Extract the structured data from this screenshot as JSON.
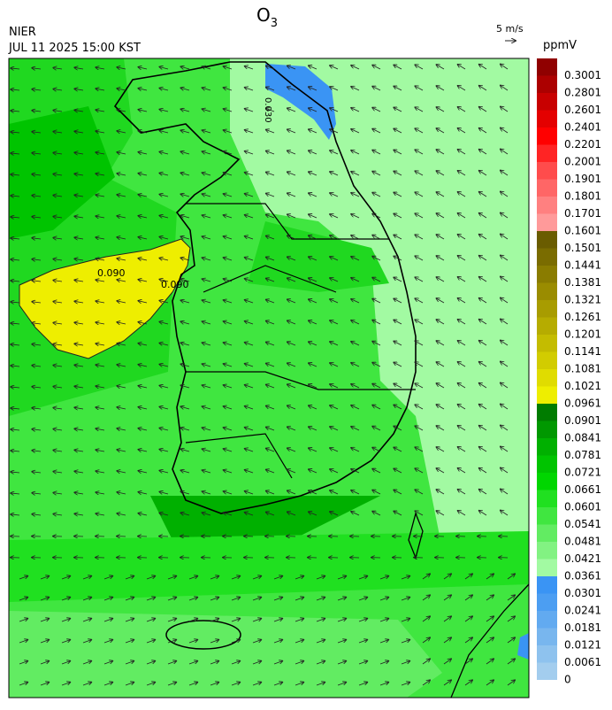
{
  "title": {
    "text": "O",
    "subscript": "3"
  },
  "source": "NIER",
  "datetime": "JUL 11 2025 15:00 KST",
  "wind_scale": "5 m/s",
  "contour_labels": [
    "0.090",
    "0.090",
    "0.030"
  ],
  "colorbar": {
    "unit": "ppmV",
    "labels": [
      0,
      0.0061,
      0.0121,
      0.0181,
      0.0241,
      0.0301,
      0.0361,
      0.0421,
      0.0481,
      0.0541,
      0.0601,
      0.0661,
      0.0721,
      0.0781,
      0.0841,
      0.0901,
      0.0961,
      0.1021,
      0.1081,
      0.1141,
      0.1201,
      0.1261,
      0.1321,
      0.1381,
      0.1441,
      0.1501,
      0.1601,
      0.1701,
      0.1801,
      0.1901,
      0.2001,
      0.2201,
      0.2401,
      0.2601,
      0.2801,
      0.3001
    ],
    "colors": [
      "#a3cdee",
      "#8ec2ee",
      "#78b6ee",
      "#62aaf0",
      "#4c9ef2",
      "#3a94f4",
      "#a2faa2",
      "#82f282",
      "#62ec62",
      "#40e640",
      "#20e020",
      "#00d600",
      "#00c400",
      "#00b000",
      "#009800",
      "#007c00",
      "#eeee00",
      "#e0dc00",
      "#d2cc00",
      "#c4bc00",
      "#b6ac00",
      "#a89c00",
      "#9a8c00",
      "#8a7c00",
      "#7a6c00",
      "#6a5c00",
      "#ff9a9a",
      "#ff8080",
      "#ff6666",
      "#ff4c4c",
      "#ff2424",
      "#ff0000",
      "#e40000",
      "#c80000",
      "#ac0000",
      "#900000"
    ]
  }
}
